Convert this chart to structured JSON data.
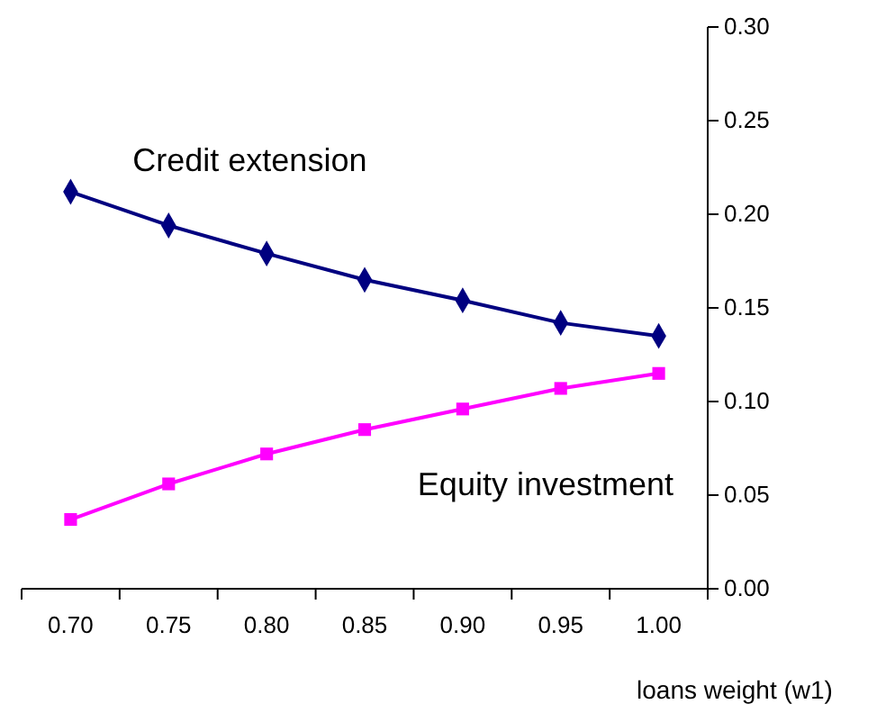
{
  "chart_data": {
    "type": "line",
    "xlabel": "loans weight (w1)",
    "categories": [
      "0.70",
      "0.75",
      "0.80",
      "0.85",
      "0.90",
      "0.95",
      "1.00"
    ],
    "ylim": [
      0,
      0.3
    ],
    "yticks": [
      {
        "value": 0,
        "label": "0.00"
      },
      {
        "value": 0.05,
        "label": "0.05"
      },
      {
        "value": 0.1,
        "label": "0.10"
      },
      {
        "value": 0.15,
        "label": "0.15"
      },
      {
        "value": 0.2,
        "label": "0.20"
      },
      {
        "value": 0.25,
        "label": "0.25"
      },
      {
        "value": 0.3,
        "label": "0.30"
      }
    ],
    "grid": false,
    "series": [
      {
        "name": "Credit extension",
        "color": "#000080",
        "marker": "diamond",
        "values": [
          0.212,
          0.194,
          0.179,
          0.165,
          0.154,
          0.142,
          0.135
        ]
      },
      {
        "name": "Equity investment",
        "color": "#ff00ff",
        "marker": "square",
        "values": [
          0.037,
          0.056,
          0.072,
          0.085,
          0.096,
          0.107,
          0.115
        ]
      }
    ]
  }
}
